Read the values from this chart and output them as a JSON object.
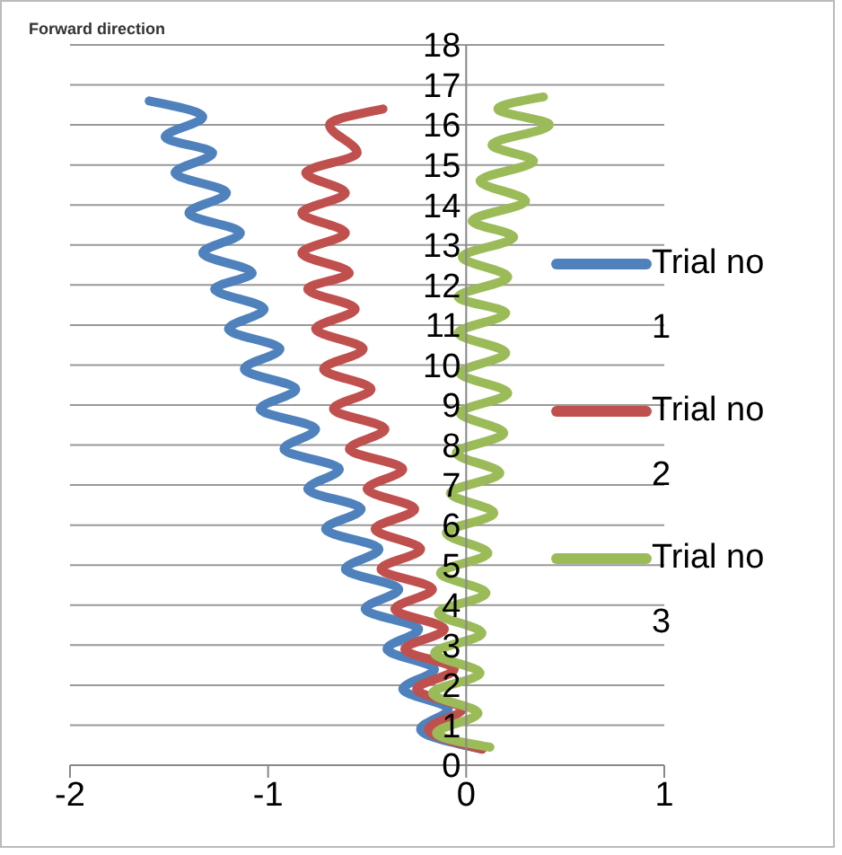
{
  "chart_data": {
    "type": "line",
    "title": "Forward direction",
    "xlim": [
      -2,
      1
    ],
    "xticks": [
      -2,
      -1,
      0,
      1
    ],
    "ylim": [
      0,
      18
    ],
    "yticks": [
      0,
      1,
      2,
      3,
      4,
      5,
      6,
      7,
      8,
      9,
      10,
      11,
      12,
      13,
      14,
      15,
      16,
      17,
      18
    ],
    "grid": "y",
    "legend": "right",
    "marker": "none",
    "line_style": "solid",
    "series": [
      {
        "name": "Trial no 1",
        "color": "#4f81bd",
        "x": [
          0.08,
          -0.23,
          -0.09,
          -0.32,
          -0.16,
          -0.4,
          -0.24,
          -0.51,
          -0.34,
          -0.61,
          -0.44,
          -0.71,
          -0.53,
          -0.8,
          -0.64,
          -0.92,
          -0.76,
          -1.04,
          -0.86,
          -1.12,
          -0.94,
          -1.2,
          -1.02,
          -1.27,
          -1.08,
          -1.33,
          -1.14,
          -1.4,
          -1.21,
          -1.47,
          -1.28,
          -1.52,
          -1.33,
          -1.6
        ],
        "values": [
          0.4,
          0.9,
          1.4,
          1.9,
          2.4,
          2.9,
          3.4,
          3.9,
          4.4,
          4.9,
          5.4,
          5.9,
          6.4,
          6.9,
          7.4,
          7.9,
          8.4,
          8.9,
          9.4,
          9.9,
          10.4,
          10.9,
          11.4,
          11.9,
          12.3,
          12.8,
          13.3,
          13.8,
          14.3,
          14.8,
          15.3,
          15.7,
          16.2,
          16.6
        ]
      },
      {
        "name": "Trial no 2",
        "color": "#c0504d",
        "x": [
          0.08,
          -0.19,
          -0.02,
          -0.25,
          -0.06,
          -0.31,
          -0.11,
          -0.36,
          -0.17,
          -0.43,
          -0.23,
          -0.46,
          -0.26,
          -0.5,
          -0.32,
          -0.59,
          -0.41,
          -0.67,
          -0.48,
          -0.72,
          -0.52,
          -0.76,
          -0.56,
          -0.8,
          -0.59,
          -0.83,
          -0.61,
          -0.83,
          -0.61,
          -0.81,
          -0.55,
          -0.69,
          -0.42
        ],
        "values": [
          0.4,
          0.9,
          1.4,
          1.9,
          2.4,
          2.9,
          3.4,
          3.9,
          4.4,
          4.9,
          5.4,
          5.9,
          6.4,
          6.9,
          7.4,
          7.9,
          8.4,
          8.9,
          9.4,
          9.9,
          10.4,
          10.9,
          11.4,
          11.9,
          12.3,
          12.8,
          13.3,
          13.8,
          14.3,
          14.8,
          15.3,
          16.0,
          16.4
        ]
      },
      {
        "name": "Trial no 3",
        "color": "#9bbb59",
        "x": [
          0.12,
          -0.15,
          0.06,
          -0.17,
          0.07,
          -0.16,
          0.08,
          -0.14,
          0.1,
          -0.13,
          0.11,
          -0.1,
          0.14,
          -0.08,
          0.17,
          -0.05,
          0.19,
          -0.03,
          0.21,
          -0.03,
          0.2,
          -0.04,
          0.2,
          -0.04,
          0.21,
          -0.02,
          0.24,
          0.03,
          0.3,
          0.07,
          0.34,
          0.13,
          0.42,
          0.16,
          0.39
        ],
        "values": [
          0.45,
          0.8,
          1.3,
          1.8,
          2.3,
          2.8,
          3.3,
          3.8,
          4.3,
          4.8,
          5.3,
          5.8,
          6.3,
          6.8,
          7.3,
          7.8,
          8.3,
          8.8,
          9.3,
          9.8,
          10.3,
          10.8,
          11.3,
          11.7,
          12.2,
          12.7,
          13.2,
          13.6,
          14.1,
          14.6,
          15.1,
          15.5,
          16.0,
          16.4,
          16.7
        ]
      }
    ]
  }
}
